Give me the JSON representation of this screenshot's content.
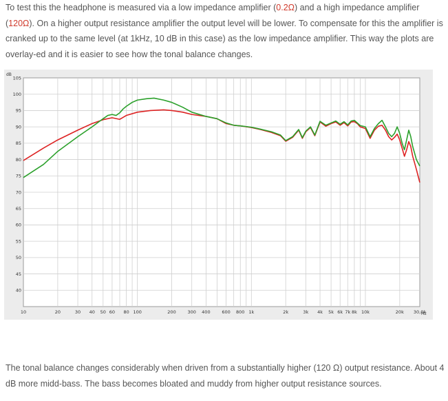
{
  "text": {
    "p1_a": "To test this the headphone is measured via a low impedance amplifier (",
    "p1_low_ohm": "0.2Ω",
    "p1_b": ") and a high impedance amplifier (",
    "p1_high_ohm": "120Ω",
    "p1_c": "). On a higher output resistance amplifier the output level will be lower. To compensate for this the amplifier is cranked up to the same level (at 1kHz, 10 dB in this case) as the low impedance amplifier. This way the plots are overlay-ed and it is easier to see how the tonal balance changes.",
    "p2": "The tonal balance changes considerably when driven from a substantially higher (120 Ω) output resistance. About 4 dB more midd-bass. The bass becomes bloated and muddy from higher output resistance sources."
  },
  "colors": {
    "low_impedance": "#dd2222",
    "high_impedance": "#2aa02a",
    "text_highlight": "#d0392b"
  },
  "chart_data": {
    "type": "line",
    "y_unit_label": "dB",
    "x_unit_label": "Hz",
    "xscale": "log",
    "xlim": [
      10,
      30000
    ],
    "ylim": [
      35,
      105
    ],
    "grid": true,
    "x_ticks": [
      {
        "v": 10,
        "label": "10"
      },
      {
        "v": 20,
        "label": "20"
      },
      {
        "v": 30,
        "label": "30"
      },
      {
        "v": 40,
        "label": "40"
      },
      {
        "v": 50,
        "label": "50"
      },
      {
        "v": 60,
        "label": "60"
      },
      {
        "v": 80,
        "label": "80"
      },
      {
        "v": 100,
        "label": "100"
      },
      {
        "v": 200,
        "label": "200"
      },
      {
        "v": 300,
        "label": "300"
      },
      {
        "v": 400,
        "label": "400"
      },
      {
        "v": 600,
        "label": "600"
      },
      {
        "v": 800,
        "label": "800"
      },
      {
        "v": 1000,
        "label": "1k"
      },
      {
        "v": 2000,
        "label": "2k"
      },
      {
        "v": 3000,
        "label": "3k"
      },
      {
        "v": 4000,
        "label": "4k"
      },
      {
        "v": 5000,
        "label": "5k"
      },
      {
        "v": 6000,
        "label": "6k"
      },
      {
        "v": 7000,
        "label": "7k"
      },
      {
        "v": 8000,
        "label": "8k"
      },
      {
        "v": 10000,
        "label": "10k"
      },
      {
        "v": 20000,
        "label": "20k"
      },
      {
        "v": 30000,
        "label": "30,0k"
      }
    ],
    "y_ticks": [
      "105",
      "100",
      "95",
      "90",
      "85",
      "80",
      "75",
      "70",
      "65",
      "60",
      "55",
      "50",
      "45",
      "40"
    ],
    "series": [
      {
        "color_key": "low_impedance",
        "points": [
          [
            10,
            79.7
          ],
          [
            15,
            83.5
          ],
          [
            20,
            86
          ],
          [
            30,
            89
          ],
          [
            40,
            91
          ],
          [
            50,
            92.2
          ],
          [
            60,
            92.8
          ],
          [
            70,
            92.3
          ],
          [
            80,
            93.5
          ],
          [
            100,
            94.5
          ],
          [
            130,
            95
          ],
          [
            170,
            95.2
          ],
          [
            200,
            95
          ],
          [
            250,
            94.5
          ],
          [
            300,
            93.8
          ],
          [
            400,
            93.2
          ],
          [
            500,
            92.5
          ],
          [
            600,
            91
          ],
          [
            700,
            90.5
          ],
          [
            800,
            90.3
          ],
          [
            1000,
            89.8
          ],
          [
            1200,
            89.2
          ],
          [
            1500,
            88.3
          ],
          [
            1800,
            87.3
          ],
          [
            2000,
            85.6
          ],
          [
            2300,
            86.8
          ],
          [
            2600,
            89
          ],
          [
            2800,
            86.5
          ],
          [
            3000,
            88.5
          ],
          [
            3300,
            89.8
          ],
          [
            3600,
            87.3
          ],
          [
            4000,
            91.5
          ],
          [
            4500,
            90.2
          ],
          [
            5000,
            91
          ],
          [
            5500,
            91.5
          ],
          [
            6000,
            90.5
          ],
          [
            6500,
            91.3
          ],
          [
            7000,
            90.3
          ],
          [
            7500,
            91.5
          ],
          [
            8000,
            91.6
          ],
          [
            8500,
            91
          ],
          [
            9000,
            90
          ],
          [
            10000,
            89.5
          ],
          [
            11000,
            86.5
          ],
          [
            12000,
            89
          ],
          [
            13000,
            90.2
          ],
          [
            14000,
            90.5
          ],
          [
            15000,
            89
          ],
          [
            16000,
            87
          ],
          [
            17000,
            86
          ],
          [
            18000,
            86.8
          ],
          [
            19000,
            87.8
          ],
          [
            20000,
            86
          ],
          [
            21000,
            83.5
          ],
          [
            22000,
            81
          ],
          [
            23000,
            83
          ],
          [
            24000,
            85.5
          ],
          [
            25000,
            84
          ],
          [
            26000,
            81
          ],
          [
            27000,
            79
          ],
          [
            28000,
            77
          ],
          [
            30000,
            73
          ]
        ]
      },
      {
        "color_key": "high_impedance",
        "points": [
          [
            10,
            74.5
          ],
          [
            15,
            78.5
          ],
          [
            20,
            82.5
          ],
          [
            30,
            87
          ],
          [
            40,
            90
          ],
          [
            50,
            92.5
          ],
          [
            55,
            93.5
          ],
          [
            60,
            93.8
          ],
          [
            65,
            93.5
          ],
          [
            70,
            94.3
          ],
          [
            75,
            95.5
          ],
          [
            80,
            96.3
          ],
          [
            90,
            97.5
          ],
          [
            100,
            98.2
          ],
          [
            120,
            98.6
          ],
          [
            140,
            98.8
          ],
          [
            170,
            98.2
          ],
          [
            200,
            97.5
          ],
          [
            250,
            96
          ],
          [
            300,
            94.5
          ],
          [
            400,
            93.2
          ],
          [
            500,
            92.5
          ],
          [
            600,
            91.2
          ],
          [
            700,
            90.5
          ],
          [
            800,
            90.3
          ],
          [
            1000,
            89.9
          ],
          [
            1200,
            89.3
          ],
          [
            1500,
            88.5
          ],
          [
            1800,
            87.5
          ],
          [
            2000,
            85.8
          ],
          [
            2300,
            87
          ],
          [
            2600,
            89.2
          ],
          [
            2800,
            86.7
          ],
          [
            3000,
            88.7
          ],
          [
            3300,
            90
          ],
          [
            3600,
            87.5
          ],
          [
            4000,
            91.7
          ],
          [
            4500,
            90.5
          ],
          [
            5000,
            91.2
          ],
          [
            5500,
            91.8
          ],
          [
            6000,
            90.8
          ],
          [
            6500,
            91.6
          ],
          [
            7000,
            90.6
          ],
          [
            7500,
            91.8
          ],
          [
            8000,
            92
          ],
          [
            8500,
            91.2
          ],
          [
            9000,
            90.4
          ],
          [
            10000,
            90
          ],
          [
            11000,
            87
          ],
          [
            12000,
            89.5
          ],
          [
            13000,
            91
          ],
          [
            14000,
            92
          ],
          [
            15000,
            90
          ],
          [
            16000,
            88
          ],
          [
            17000,
            87
          ],
          [
            18000,
            88
          ],
          [
            19000,
            90
          ],
          [
            20000,
            88
          ],
          [
            21000,
            85
          ],
          [
            22000,
            83
          ],
          [
            23000,
            86
          ],
          [
            24000,
            89
          ],
          [
            25000,
            87
          ],
          [
            26000,
            84
          ],
          [
            27000,
            82
          ],
          [
            28000,
            80
          ],
          [
            30000,
            78
          ]
        ]
      }
    ]
  }
}
